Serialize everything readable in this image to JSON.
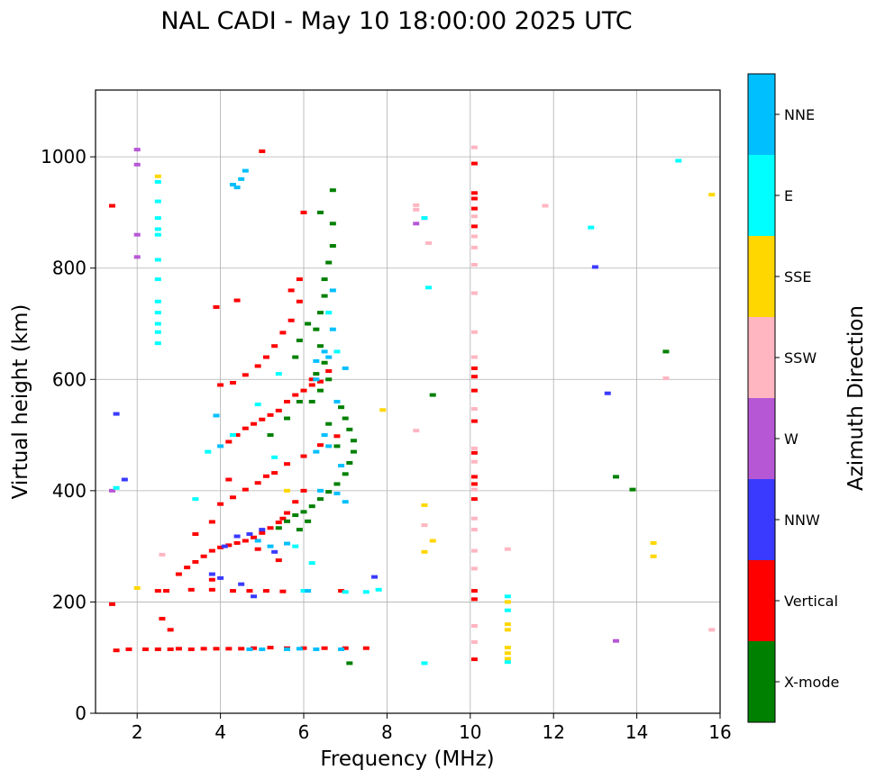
{
  "chart_data": {
    "type": "scatter",
    "title": "NAL CADI - May 10 18:00:00 2025 UTC",
    "xlabel": "Frequency (MHz)",
    "ylabel": "Virtual height (km)",
    "xlim": [
      1,
      16
    ],
    "ylim": [
      0,
      1120
    ],
    "xticks": [
      2,
      4,
      6,
      8,
      10,
      12,
      14,
      16
    ],
    "yticks": [
      0,
      200,
      400,
      600,
      800,
      1000
    ],
    "grid": true,
    "colorbar": {
      "label": "Azimuth Direction",
      "categories": [
        {
          "name": "X-mode",
          "color": "#008000"
        },
        {
          "name": "Vertical",
          "color": "#ff0000"
        },
        {
          "name": "NNW",
          "color": "#3a3aff"
        },
        {
          "name": "W",
          "color": "#b657d6"
        },
        {
          "name": "SSW",
          "color": "#ffb6c1"
        },
        {
          "name": "SSE",
          "color": "#ffd700"
        },
        {
          "name": "E",
          "color": "#00ffff"
        },
        {
          "name": "NNE",
          "color": "#00bfff"
        }
      ]
    },
    "series": [
      {
        "name": "Vertical",
        "points": [
          [
            1.5,
            113
          ],
          [
            1.8,
            115
          ],
          [
            2.2,
            115
          ],
          [
            2.5,
            115
          ],
          [
            2.8,
            115
          ],
          [
            3.0,
            116
          ],
          [
            3.3,
            115
          ],
          [
            3.6,
            116
          ],
          [
            3.9,
            116
          ],
          [
            4.2,
            116
          ],
          [
            4.5,
            116
          ],
          [
            4.8,
            117
          ],
          [
            5.2,
            118
          ],
          [
            5.6,
            117
          ],
          [
            6.0,
            117
          ],
          [
            6.5,
            117
          ],
          [
            7.0,
            117
          ],
          [
            7.5,
            117
          ],
          [
            2.5,
            220
          ],
          [
            2.7,
            220
          ],
          [
            3.3,
            222
          ],
          [
            3.8,
            222
          ],
          [
            4.3,
            220
          ],
          [
            4.7,
            220
          ],
          [
            5.1,
            220
          ],
          [
            5.5,
            219
          ],
          [
            6.9,
            220
          ],
          [
            2.6,
            170
          ],
          [
            2.8,
            150
          ],
          [
            3.0,
            250
          ],
          [
            3.2,
            262
          ],
          [
            3.4,
            272
          ],
          [
            3.6,
            282
          ],
          [
            3.8,
            292
          ],
          [
            4.0,
            298
          ],
          [
            4.2,
            302
          ],
          [
            4.4,
            306
          ],
          [
            4.6,
            310
          ],
          [
            4.8,
            316
          ],
          [
            5.0,
            324
          ],
          [
            5.2,
            333
          ],
          [
            5.4,
            343
          ],
          [
            5.6,
            360
          ],
          [
            5.8,
            380
          ],
          [
            6.0,
            400
          ],
          [
            5.5,
            350
          ],
          [
            3.4,
            322
          ],
          [
            3.8,
            344
          ],
          [
            4.0,
            376
          ],
          [
            4.3,
            388
          ],
          [
            4.6,
            402
          ],
          [
            4.9,
            414
          ],
          [
            5.1,
            426
          ],
          [
            5.3,
            432
          ],
          [
            5.6,
            448
          ],
          [
            6.0,
            462
          ],
          [
            6.4,
            482
          ],
          [
            6.8,
            498
          ],
          [
            4.2,
            488
          ],
          [
            4.4,
            500
          ],
          [
            4.6,
            512
          ],
          [
            4.8,
            520
          ],
          [
            5.0,
            528
          ],
          [
            5.2,
            536
          ],
          [
            5.4,
            544
          ],
          [
            5.6,
            560
          ],
          [
            5.8,
            572
          ],
          [
            6.0,
            580
          ],
          [
            6.2,
            590
          ],
          [
            6.4,
            596
          ],
          [
            4.0,
            590
          ],
          [
            4.3,
            594
          ],
          [
            4.6,
            608
          ],
          [
            4.9,
            624
          ],
          [
            5.1,
            640
          ],
          [
            5.3,
            660
          ],
          [
            5.5,
            684
          ],
          [
            5.7,
            706
          ],
          [
            5.9,
            740
          ],
          [
            5.7,
            760
          ],
          [
            5.9,
            780
          ],
          [
            4.2,
            420
          ],
          [
            3.9,
            730
          ],
          [
            4.4,
            742
          ],
          [
            6.0,
            900
          ],
          [
            5.0,
            1010
          ],
          [
            1.4,
            912
          ],
          [
            1.4,
            196
          ],
          [
            3.8,
            240
          ],
          [
            4.9,
            295
          ],
          [
            5.4,
            275
          ],
          [
            6.2,
            600
          ],
          [
            6.6,
            615
          ],
          [
            10.1,
            988
          ],
          [
            10.1,
            935
          ],
          [
            10.1,
            925
          ],
          [
            10.1,
            907
          ],
          [
            10.1,
            875
          ],
          [
            10.1,
            620
          ],
          [
            10.1,
            605
          ],
          [
            10.1,
            580
          ],
          [
            10.1,
            525
          ],
          [
            10.1,
            468
          ],
          [
            10.1,
            425
          ],
          [
            10.1,
            412
          ],
          [
            10.1,
            385
          ],
          [
            10.1,
            220
          ],
          [
            10.1,
            205
          ],
          [
            10.1,
            97
          ]
        ]
      },
      {
        "name": "X-mode",
        "points": [
          [
            5.4,
            333
          ],
          [
            5.6,
            345
          ],
          [
            5.8,
            356
          ],
          [
            6.0,
            362
          ],
          [
            6.2,
            372
          ],
          [
            6.4,
            385
          ],
          [
            6.6,
            398
          ],
          [
            6.8,
            412
          ],
          [
            7.0,
            430
          ],
          [
            7.1,
            450
          ],
          [
            7.2,
            470
          ],
          [
            7.2,
            490
          ],
          [
            7.1,
            510
          ],
          [
            7.0,
            530
          ],
          [
            6.9,
            550
          ],
          [
            6.2,
            560
          ],
          [
            6.4,
            580
          ],
          [
            6.6,
            600
          ],
          [
            6.5,
            630
          ],
          [
            6.4,
            660
          ],
          [
            6.3,
            690
          ],
          [
            6.4,
            720
          ],
          [
            6.5,
            750
          ],
          [
            6.5,
            780
          ],
          [
            6.6,
            810
          ],
          [
            6.7,
            840
          ],
          [
            6.7,
            880
          ],
          [
            6.7,
            940
          ],
          [
            6.4,
            900
          ],
          [
            5.9,
            560
          ],
          [
            5.6,
            530
          ],
          [
            5.2,
            500
          ],
          [
            5.8,
            640
          ],
          [
            5.9,
            670
          ],
          [
            6.1,
            700
          ],
          [
            6.3,
            610
          ],
          [
            6.6,
            520
          ],
          [
            6.8,
            480
          ],
          [
            7.1,
            90
          ],
          [
            9.1,
            572
          ],
          [
            13.5,
            425
          ],
          [
            13.9,
            402
          ],
          [
            14.7,
            650
          ],
          [
            5.9,
            330
          ],
          [
            6.1,
            345
          ]
        ]
      },
      {
        "name": "NNW",
        "points": [
          [
            1.5,
            538
          ],
          [
            1.7,
            420
          ],
          [
            4.1,
            300
          ],
          [
            4.4,
            318
          ],
          [
            4.7,
            322
          ],
          [
            5.0,
            330
          ],
          [
            7.7,
            245
          ],
          [
            4.0,
            243
          ],
          [
            4.5,
            232
          ],
          [
            4.8,
            210
          ],
          [
            13.0,
            802
          ],
          [
            13.3,
            575
          ],
          [
            5.3,
            290
          ],
          [
            3.8,
            250
          ]
        ]
      },
      {
        "name": "W",
        "points": [
          [
            2.0,
            1013
          ],
          [
            2.0,
            986
          ],
          [
            2.0,
            860
          ],
          [
            2.0,
            820
          ],
          [
            1.4,
            400
          ],
          [
            8.7,
            880
          ],
          [
            8.9,
            890
          ],
          [
            13.5,
            130
          ]
        ]
      },
      {
        "name": "SSW",
        "points": [
          [
            8.7,
            913
          ],
          [
            8.7,
            905
          ],
          [
            9.0,
            845
          ],
          [
            8.7,
            508
          ],
          [
            8.9,
            338
          ],
          [
            10.1,
            1017
          ],
          [
            10.1,
            893
          ],
          [
            10.1,
            857
          ],
          [
            10.1,
            837
          ],
          [
            10.1,
            806
          ],
          [
            10.1,
            755
          ],
          [
            10.1,
            685
          ],
          [
            10.1,
            640
          ],
          [
            10.1,
            547
          ],
          [
            10.1,
            476
          ],
          [
            10.1,
            452
          ],
          [
            10.1,
            402
          ],
          [
            10.1,
            350
          ],
          [
            10.1,
            330
          ],
          [
            10.1,
            292
          ],
          [
            10.1,
            260
          ],
          [
            10.1,
            157
          ],
          [
            10.1,
            128
          ],
          [
            10.9,
            295
          ],
          [
            11.8,
            912
          ],
          [
            14.7,
            602
          ],
          [
            15.8,
            150
          ],
          [
            2.6,
            285
          ]
        ]
      },
      {
        "name": "SSE",
        "points": [
          [
            2.5,
            965
          ],
          [
            8.9,
            374
          ],
          [
            8.9,
            290
          ],
          [
            9.1,
            310
          ],
          [
            10.9,
            200
          ],
          [
            10.9,
            160
          ],
          [
            10.9,
            150
          ],
          [
            10.9,
            118
          ],
          [
            10.9,
            108
          ],
          [
            10.9,
            98
          ],
          [
            14.4,
            306
          ],
          [
            14.4,
            282
          ],
          [
            15.8,
            932
          ],
          [
            7.9,
            545
          ],
          [
            2.0,
            225
          ],
          [
            5.6,
            400
          ]
        ]
      },
      {
        "name": "E",
        "points": [
          [
            2.5,
            955
          ],
          [
            2.5,
            920
          ],
          [
            2.5,
            890
          ],
          [
            2.5,
            870
          ],
          [
            2.5,
            860
          ],
          [
            2.5,
            815
          ],
          [
            2.5,
            780
          ],
          [
            2.5,
            740
          ],
          [
            2.5,
            720
          ],
          [
            2.5,
            700
          ],
          [
            2.5,
            685
          ],
          [
            2.5,
            665
          ],
          [
            1.5,
            405
          ],
          [
            3.4,
            385
          ],
          [
            3.7,
            470
          ],
          [
            4.3,
            500
          ],
          [
            4.9,
            555
          ],
          [
            5.3,
            460
          ],
          [
            5.8,
            300
          ],
          [
            6.2,
            270
          ],
          [
            6.0,
            220
          ],
          [
            7.0,
            218
          ],
          [
            7.5,
            218
          ],
          [
            7.8,
            222
          ],
          [
            9.0,
            765
          ],
          [
            8.9,
            890
          ],
          [
            8.9,
            90
          ],
          [
            10.9,
            210
          ],
          [
            10.9,
            185
          ],
          [
            10.9,
            92
          ],
          [
            12.9,
            873
          ],
          [
            15.0,
            993
          ],
          [
            5.4,
            610
          ],
          [
            6.6,
            720
          ],
          [
            6.8,
            650
          ]
        ]
      },
      {
        "name": "NNE",
        "points": [
          [
            4.3,
            950
          ],
          [
            4.5,
            960
          ],
          [
            4.6,
            975
          ],
          [
            4.4,
            945
          ],
          [
            3.9,
            535
          ],
          [
            4.0,
            480
          ],
          [
            4.9,
            310
          ],
          [
            5.2,
            300
          ],
          [
            5.6,
            305
          ],
          [
            6.3,
            633
          ],
          [
            6.3,
            600
          ],
          [
            6.7,
            690
          ],
          [
            6.6,
            640
          ],
          [
            6.8,
            560
          ],
          [
            6.5,
            500
          ],
          [
            6.6,
            480
          ],
          [
            6.3,
            470
          ],
          [
            6.4,
            400
          ],
          [
            6.8,
            395
          ],
          [
            7.0,
            380
          ],
          [
            6.9,
            445
          ],
          [
            6.1,
            220
          ],
          [
            5.6,
            115
          ],
          [
            6.3,
            115
          ],
          [
            6.9,
            115
          ],
          [
            4.7,
            115
          ],
          [
            5.0,
            115
          ],
          [
            5.9,
            116
          ],
          [
            6.5,
            650
          ],
          [
            7.0,
            620
          ],
          [
            6.7,
            760
          ]
        ]
      }
    ]
  }
}
